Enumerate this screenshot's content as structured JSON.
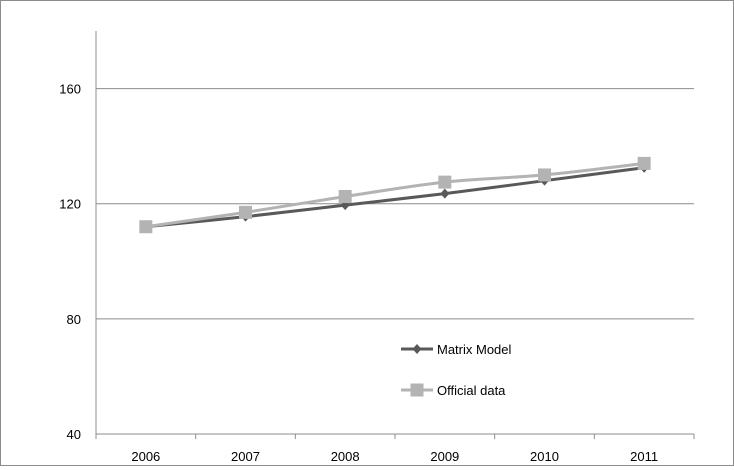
{
  "chart_data": {
    "type": "line",
    "title": "",
    "xlabel": "",
    "ylabel": "",
    "categories": [
      "2006",
      "2007",
      "2008",
      "2009",
      "2010",
      "2011"
    ],
    "ylim": [
      40,
      180
    ],
    "yticks": [
      40,
      80,
      120,
      160
    ],
    "grid": true,
    "legend_position": "center-right inside plot",
    "series": [
      {
        "name": "Matrix Model",
        "values": [
          112,
          115.5,
          119.5,
          123.5,
          128,
          132.5
        ],
        "color": "#595959",
        "marker": "diamond"
      },
      {
        "name": "Official data",
        "values": [
          112,
          117,
          122.5,
          127.5,
          130,
          134
        ],
        "color": "#b3b3b3",
        "marker": "square"
      }
    ]
  }
}
